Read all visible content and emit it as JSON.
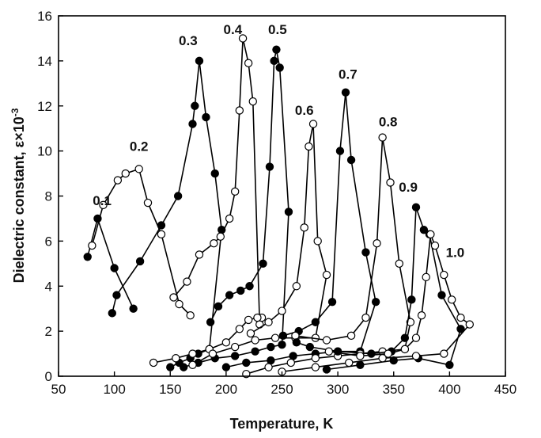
{
  "chart_data": {
    "type": "scatter",
    "title": "",
    "xlabel": "Temperature, K",
    "ylabel": "Dielectric constant, ",
    "ylabel_symbol": "ε×10",
    "ylabel_exp": "-3",
    "xlim": [
      50,
      450
    ],
    "ylim": [
      0,
      16
    ],
    "xticks": [
      50,
      100,
      150,
      200,
      250,
      300,
      350,
      400,
      450
    ],
    "yticks": [
      0,
      2,
      4,
      6,
      8,
      10,
      12,
      14,
      16
    ],
    "grid": false,
    "series": [
      {
        "name": "0.1",
        "filled": true,
        "label_at": [
          89,
          7.6
        ],
        "x": [
          76,
          85,
          100,
          117
        ],
        "y": [
          5.3,
          7.0,
          4.8,
          3.0
        ]
      },
      {
        "name": "0.2",
        "filled": false,
        "label_at": [
          122,
          10.0
        ],
        "x": [
          80,
          90,
          103,
          110,
          122,
          130,
          142,
          158,
          168
        ],
        "y": [
          5.8,
          7.6,
          8.7,
          9.0,
          9.2,
          7.7,
          6.3,
          3.2,
          2.7
        ]
      },
      {
        "name": "0.3",
        "filled": true,
        "label_at": [
          166,
          14.7
        ],
        "x": [
          98,
          102,
          123,
          142,
          157,
          170,
          172,
          176,
          182,
          190,
          196,
          185,
          175,
          168,
          158,
          150
        ],
        "y": [
          2.8,
          3.6,
          5.1,
          6.7,
          8.0,
          11.2,
          12.0,
          14.0,
          11.5,
          9.0,
          6.5,
          1.2,
          1.0,
          0.8,
          0.6,
          0.4
        ]
      },
      {
        "name": "0.4",
        "filled": false,
        "label_at": [
          206,
          15.2
        ],
        "x": [
          153,
          165,
          176,
          189,
          195,
          203,
          208,
          212,
          215,
          220,
          224,
          230,
          232,
          228,
          220,
          212,
          200,
          185,
          170,
          155,
          135
        ],
        "y": [
          3.5,
          4.2,
          5.4,
          5.9,
          6.2,
          7.0,
          8.2,
          11.8,
          15.0,
          13.9,
          12.2,
          2.3,
          2.6,
          2.6,
          2.5,
          2.1,
          1.5,
          1.2,
          1.0,
          0.8,
          0.6
        ]
      },
      {
        "name": "0.5",
        "filled": true,
        "label_at": [
          246,
          15.2
        ],
        "x": [
          186,
          193,
          203,
          213,
          221,
          233,
          239,
          243,
          245,
          248,
          256,
          250,
          240,
          226,
          208,
          190,
          175,
          162
        ],
        "y": [
          2.4,
          3.1,
          3.6,
          3.8,
          4.0,
          5.0,
          9.3,
          14.0,
          14.5,
          13.7,
          7.3,
          1.4,
          1.3,
          1.1,
          0.9,
          0.8,
          0.6,
          0.4
        ]
      },
      {
        "name": "0.6",
        "filled": false,
        "label_at": [
          270,
          11.6
        ],
        "x": [
          222,
          238,
          250,
          263,
          270,
          274,
          278,
          282,
          290,
          280,
          262,
          244,
          226,
          208,
          188,
          170
        ],
        "y": [
          1.9,
          2.4,
          2.9,
          4.0,
          6.6,
          10.2,
          11.2,
          6.0,
          4.5,
          1.7,
          1.7,
          1.7,
          1.6,
          1.3,
          1.0,
          0.5
        ]
      },
      {
        "name": "0.7",
        "filled": true,
        "label_at": [
          309,
          13.2
        ],
        "x": [
          251,
          265,
          280,
          295,
          302,
          307,
          312,
          325,
          334,
          320,
          300,
          280,
          260,
          240,
          218,
          200
        ],
        "y": [
          1.8,
          2.0,
          2.4,
          3.3,
          10.0,
          12.6,
          9.6,
          5.5,
          3.3,
          1.1,
          1.1,
          1.0,
          0.9,
          0.7,
          0.6,
          0.4
        ]
      },
      {
        "name": "0.8",
        "filled": false,
        "label_at": [
          345,
          11.1
        ],
        "x": [
          262,
          290,
          312,
          325,
          335,
          340,
          347,
          355,
          365,
          360,
          340,
          320,
          300,
          280,
          258,
          238,
          218
        ],
        "y": [
          1.8,
          1.6,
          1.8,
          2.6,
          5.9,
          10.6,
          8.6,
          5.0,
          2.4,
          1.2,
          1.1,
          1.0,
          0.9,
          0.8,
          0.6,
          0.4,
          0.1
        ]
      },
      {
        "name": "0.9",
        "filled": true,
        "label_at": [
          363,
          8.2
        ],
        "x": [
          263,
          275,
          300,
          330,
          348,
          360,
          366,
          370,
          377,
          382,
          393,
          410,
          400,
          372,
          350,
          320,
          290
        ],
        "y": [
          1.5,
          1.3,
          1.1,
          1.0,
          1.1,
          1.7,
          3.4,
          7.5,
          6.5,
          6.3,
          3.6,
          2.1,
          0.5,
          0.8,
          0.7,
          0.5,
          0.3
        ]
      },
      {
        "name": "1.0",
        "filled": false,
        "label_at": [
          405,
          5.3
        ],
        "x": [
          292,
          320,
          345,
          360,
          370,
          375,
          379,
          383,
          387,
          395,
          402,
          410,
          418,
          395,
          370,
          340,
          310,
          280,
          250
        ],
        "y": [
          1.1,
          0.9,
          1.0,
          1.2,
          1.7,
          2.7,
          4.4,
          6.3,
          5.8,
          4.5,
          3.4,
          2.6,
          2.3,
          1.0,
          0.9,
          0.8,
          0.6,
          0.4,
          0.2
        ]
      }
    ]
  }
}
